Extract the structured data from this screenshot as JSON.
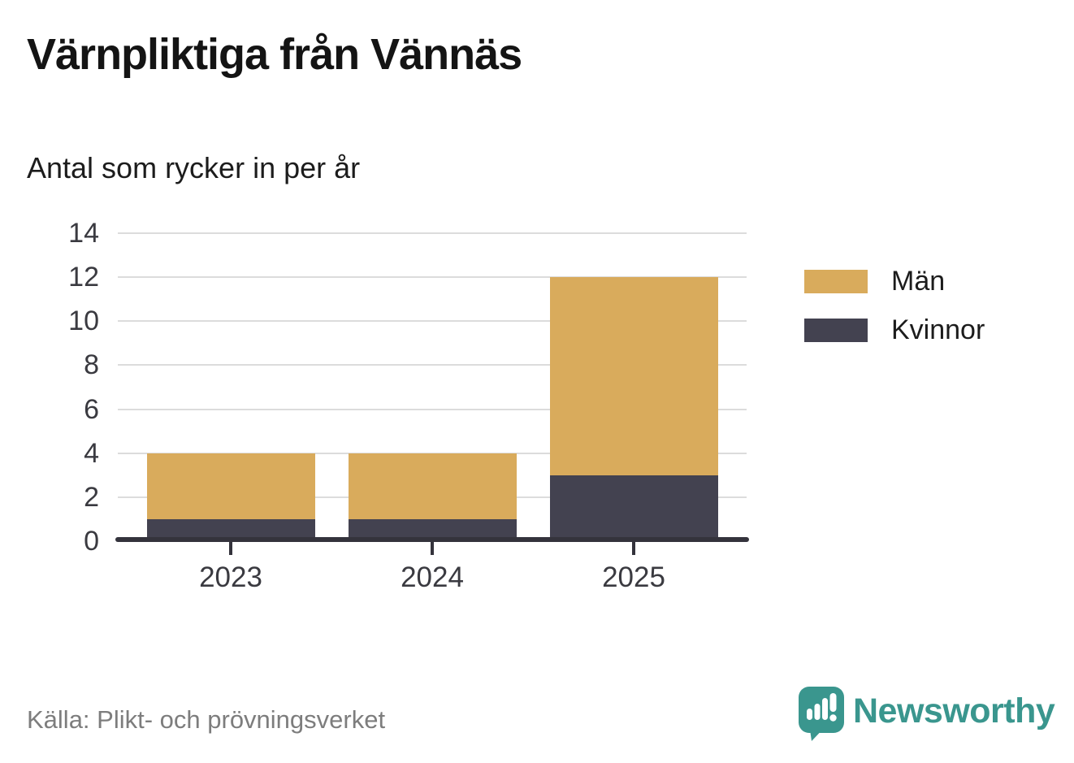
{
  "header": {
    "title": "Värnpliktiga från Vännäs",
    "subtitle": "Antal som rycker in per år"
  },
  "footer": {
    "source": "Källa: Plikt- och prövningsverket",
    "brand": "Newsworthy"
  },
  "colors": {
    "men_gold": "#d9ab5c",
    "women_dark": "#434250",
    "axis": "#34333c",
    "gridline": "#dcdcdc",
    "brand_teal": "#3a968e",
    "source_gray": "#7d7d7d"
  },
  "chart_data": {
    "type": "bar",
    "stacked": true,
    "title": "Värnpliktiga från Vännäs",
    "subtitle": "Antal som rycker in per år",
    "categories": [
      "2023",
      "2024",
      "2025"
    ],
    "series": [
      {
        "name": "Kvinnor",
        "color": "#434250",
        "values": [
          1,
          1,
          3
        ]
      },
      {
        "name": "Män",
        "color": "#d9ab5c",
        "values": [
          3,
          3,
          9
        ]
      }
    ],
    "totals": [
      4,
      4,
      12
    ],
    "xlabel": "",
    "ylabel": "",
    "ylim": [
      0,
      14
    ],
    "yticks": [
      0,
      2,
      4,
      6,
      8,
      10,
      12,
      14
    ],
    "grid": true,
    "legend_position": "right",
    "legend_items": [
      {
        "label": "Män",
        "color": "#d9ab5c"
      },
      {
        "label": "Kvinnor",
        "color": "#434250"
      }
    ]
  }
}
